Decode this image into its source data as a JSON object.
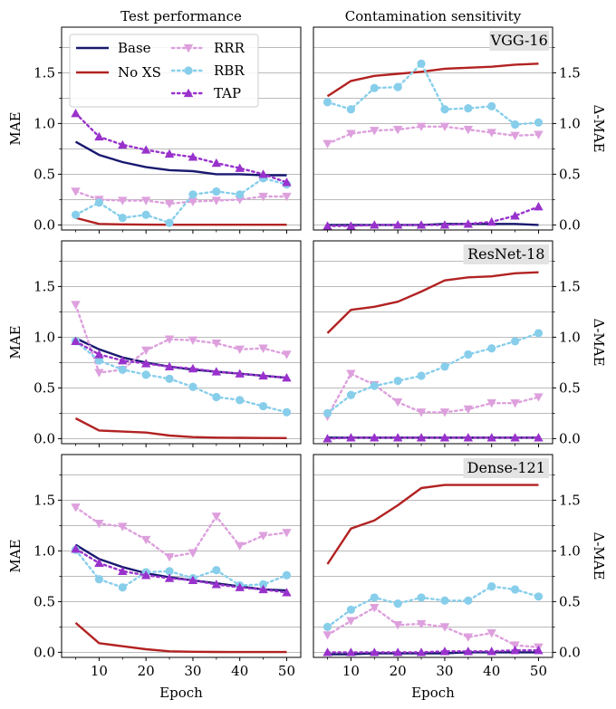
{
  "chart_data": {
    "type": "line",
    "column_titles": [
      "Test performance",
      "Contamination sensitivity"
    ],
    "xlabel": "Epoch",
    "left_ylabel": "MAE",
    "right_ylabel": "Δ-MAE",
    "xlim": [
      2,
      53
    ],
    "ylim": [
      -0.05,
      1.95
    ],
    "xticks": [
      10,
      20,
      30,
      40,
      50
    ],
    "yticks": [
      0.0,
      0.5,
      1.0,
      1.5
    ],
    "x": [
      5,
      10,
      15,
      20,
      25,
      30,
      35,
      40,
      45,
      50
    ],
    "legend": {
      "placement": "top-left of top-left panel",
      "entries": [
        "Base",
        "No XS",
        "RRR",
        "RBR",
        "TAP"
      ]
    },
    "series_styles": [
      {
        "name": "Base",
        "color": "#191970",
        "dash": "solid",
        "marker": "none"
      },
      {
        "name": "No XS",
        "color": "#b22222",
        "dash": "solid",
        "marker": "none"
      },
      {
        "name": "RRR",
        "color": "#dda0dd",
        "dash": "dotted",
        "marker": "triangle-down"
      },
      {
        "name": "RBR",
        "color": "#87ceeb",
        "dash": "dotted",
        "marker": "circle"
      },
      {
        "name": "TAP",
        "color": "#9932cc",
        "dash": "dotted",
        "marker": "triangle-up"
      }
    ],
    "rows": [
      {
        "model": "VGG-16",
        "left": {
          "Base": [
            0.82,
            0.69,
            0.62,
            0.57,
            0.54,
            0.53,
            0.5,
            0.5,
            0.49,
            0.49
          ],
          "No XS": [
            0.07,
            0.01,
            0.005,
            0.003,
            0.002,
            0.002,
            0.002,
            0.002,
            0.002,
            0.002
          ],
          "RRR": [
            0.33,
            0.25,
            0.24,
            0.24,
            0.21,
            0.23,
            0.24,
            0.25,
            0.28,
            0.28
          ],
          "RBR": [
            0.1,
            0.22,
            0.07,
            0.1,
            0.02,
            0.3,
            0.33,
            0.3,
            0.46,
            0.4
          ],
          "TAP": [
            1.1,
            0.87,
            0.79,
            0.74,
            0.7,
            0.67,
            0.61,
            0.56,
            0.5,
            0.42
          ]
        },
        "right": {
          "Base": [
            0.0,
            0.0,
            0.0,
            0.0,
            0.0,
            0.01,
            0.01,
            0.01,
            0.01,
            0.0
          ],
          "No XS": [
            1.27,
            1.42,
            1.47,
            1.49,
            1.51,
            1.54,
            1.55,
            1.56,
            1.58,
            1.59
          ],
          "RRR": [
            0.8,
            0.9,
            0.93,
            0.94,
            0.97,
            0.97,
            0.94,
            0.91,
            0.88,
            0.89
          ],
          "RBR": [
            1.21,
            1.14,
            1.35,
            1.36,
            1.59,
            1.14,
            1.15,
            1.17,
            0.99,
            1.01
          ],
          "TAP": [
            -0.01,
            -0.01,
            0.0,
            0.0,
            0.0,
            0.0,
            0.01,
            0.03,
            0.09,
            0.18
          ]
        }
      },
      {
        "model": "ResNet-18",
        "left": {
          "Base": [
            0.99,
            0.88,
            0.8,
            0.75,
            0.71,
            0.68,
            0.66,
            0.64,
            0.62,
            0.6
          ],
          "No XS": [
            0.2,
            0.08,
            0.07,
            0.06,
            0.03,
            0.015,
            0.01,
            0.008,
            0.006,
            0.005
          ],
          "RRR": [
            1.32,
            0.65,
            0.68,
            0.87,
            0.98,
            0.97,
            0.94,
            0.88,
            0.89,
            0.83
          ],
          "RBR": [
            0.96,
            0.77,
            0.68,
            0.63,
            0.59,
            0.51,
            0.41,
            0.38,
            0.32,
            0.26
          ],
          "TAP": [
            0.96,
            0.83,
            0.77,
            0.74,
            0.71,
            0.69,
            0.66,
            0.64,
            0.62,
            0.6
          ]
        },
        "right": {
          "Base": [
            0.01,
            0.01,
            0.01,
            0.01,
            0.01,
            0.01,
            0.01,
            0.01,
            0.01,
            0.01
          ],
          "No XS": [
            1.04,
            1.27,
            1.3,
            1.35,
            1.45,
            1.56,
            1.59,
            1.6,
            1.63,
            1.64
          ],
          "RRR": [
            0.22,
            0.64,
            0.53,
            0.36,
            0.26,
            0.26,
            0.29,
            0.35,
            0.35,
            0.41
          ],
          "RBR": [
            0.25,
            0.43,
            0.52,
            0.57,
            0.62,
            0.71,
            0.83,
            0.89,
            0.96,
            1.04
          ],
          "TAP": [
            0.0,
            0.01,
            0.01,
            0.01,
            0.01,
            0.01,
            0.01,
            0.01,
            0.01,
            0.01
          ]
        }
      },
      {
        "model": "Dense-121",
        "left": {
          "Base": [
            1.06,
            0.92,
            0.84,
            0.78,
            0.74,
            0.71,
            0.68,
            0.65,
            0.62,
            0.61
          ],
          "No XS": [
            0.29,
            0.09,
            0.06,
            0.03,
            0.01,
            0.005,
            0.004,
            0.003,
            0.003,
            0.003
          ],
          "RRR": [
            1.43,
            1.27,
            1.24,
            1.11,
            0.94,
            0.98,
            1.34,
            1.05,
            1.15,
            1.18
          ],
          "RBR": [
            1.01,
            0.72,
            0.64,
            0.79,
            0.8,
            0.73,
            0.81,
            0.66,
            0.67,
            0.76
          ],
          "TAP": [
            1.02,
            0.88,
            0.8,
            0.76,
            0.73,
            0.71,
            0.67,
            0.64,
            0.62,
            0.59
          ]
        },
        "right": {
          "Base": [
            -0.02,
            -0.02,
            -0.01,
            -0.01,
            -0.01,
            -0.01,
            0.0,
            0.0,
            0.0,
            0.0
          ],
          "No XS": [
            0.87,
            1.22,
            1.3,
            1.45,
            1.62,
            1.65,
            1.65,
            1.65,
            1.65,
            1.65
          ],
          "RRR": [
            0.17,
            0.31,
            0.44,
            0.27,
            0.28,
            0.25,
            0.15,
            0.19,
            0.07,
            0.05
          ],
          "RBR": [
            0.25,
            0.42,
            0.54,
            0.48,
            0.54,
            0.51,
            0.51,
            0.65,
            0.62,
            0.55
          ],
          "TAP": [
            0.0,
            0.0,
            0.0,
            0.0,
            0.0,
            0.01,
            0.01,
            0.01,
            0.02,
            0.02
          ]
        }
      }
    ]
  }
}
